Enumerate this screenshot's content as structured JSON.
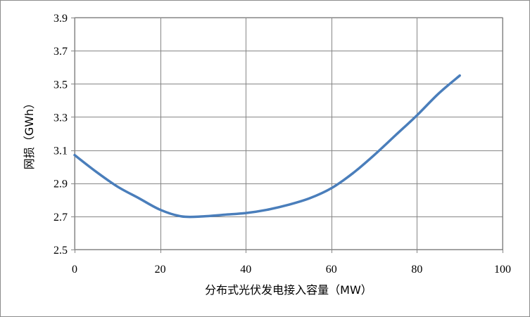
{
  "chart_data": {
    "type": "line",
    "title": "",
    "xlabel": "分布式光伏发电接入容量（MW）",
    "ylabel": "网损（GWh）",
    "xlim": [
      0,
      100
    ],
    "ylim": [
      2.5,
      3.9
    ],
    "x_ticks": [
      "0",
      "20",
      "40",
      "60",
      "80",
      "100"
    ],
    "y_ticks": [
      "2.5",
      "2.7",
      "2.9",
      "3.1",
      "3.3",
      "3.5",
      "3.7",
      "3.9"
    ],
    "grid": true,
    "legend": "none",
    "series": [
      {
        "color": "#4a7ebb",
        "x": [
          0,
          5,
          10,
          15,
          20,
          25,
          30,
          35,
          40,
          45,
          50,
          55,
          60,
          65,
          70,
          75,
          80,
          85,
          90
        ],
        "y": [
          3.07,
          2.97,
          2.88,
          2.81,
          2.74,
          2.7,
          2.7,
          2.71,
          2.72,
          2.74,
          2.77,
          2.81,
          2.87,
          2.96,
          3.07,
          3.19,
          3.31,
          3.44,
          3.55
        ]
      }
    ]
  }
}
